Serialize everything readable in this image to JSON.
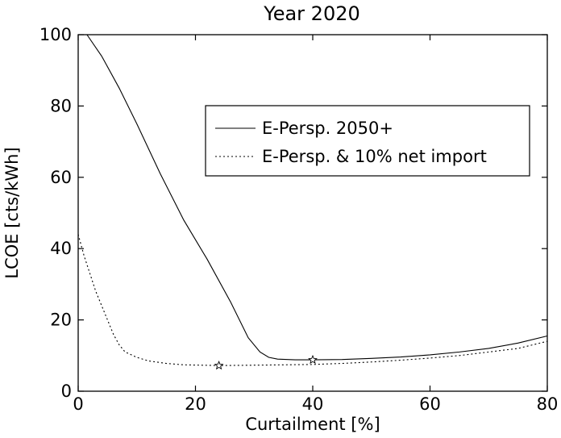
{
  "chart_data": {
    "type": "line",
    "title": "Year 2020",
    "xlabel": "Curtailment [%]",
    "ylabel": "LCOE [cts/kWh]",
    "xlim": [
      0,
      80
    ],
    "ylim": [
      0,
      100
    ],
    "xticks": [
      0,
      20,
      40,
      60,
      80
    ],
    "yticks": [
      0,
      20,
      40,
      60,
      80,
      100
    ],
    "xtick_labels": [
      "0",
      "20",
      "40",
      "60",
      "80"
    ],
    "ytick_labels": [
      "0",
      "20",
      "40",
      "60",
      "80",
      "100"
    ],
    "grid": false,
    "legend_position": "upper-right",
    "series": [
      {
        "name": "E-Persp. 2050+",
        "line_style": "solid",
        "color": "#000000",
        "x": [
          1.5,
          4,
          7,
          10,
          14,
          18,
          22,
          26,
          29,
          31,
          32.5,
          34,
          37,
          40,
          45,
          50,
          55,
          60,
          65,
          70,
          75,
          80
        ],
        "y": [
          100,
          94,
          85,
          75,
          61,
          48,
          37,
          25,
          15,
          11,
          9.5,
          9,
          8.8,
          8.8,
          8.9,
          9.2,
          9.6,
          10.2,
          11,
          12,
          13.5,
          15.5
        ],
        "markers": [
          {
            "x": 40,
            "y": 8.8,
            "symbol": "star"
          }
        ]
      },
      {
        "name": "E-Persp. & 10% net import",
        "line_style": "dotted",
        "color": "#000000",
        "x": [
          0,
          1,
          2,
          3,
          4,
          5,
          6,
          7,
          8,
          10,
          12,
          15,
          18,
          21,
          24,
          30,
          35,
          40,
          45,
          50,
          55,
          60,
          65,
          70,
          75,
          80
        ],
        "y": [
          44,
          38,
          33,
          28,
          24,
          20,
          16,
          13,
          11,
          9.5,
          8.5,
          7.8,
          7.4,
          7.3,
          7.2,
          7.3,
          7.4,
          7.5,
          7.8,
          8.2,
          8.7,
          9.3,
          10,
          11,
          12,
          14
        ],
        "markers": [
          {
            "x": 24,
            "y": 7.2,
            "symbol": "star"
          }
        ]
      }
    ]
  }
}
